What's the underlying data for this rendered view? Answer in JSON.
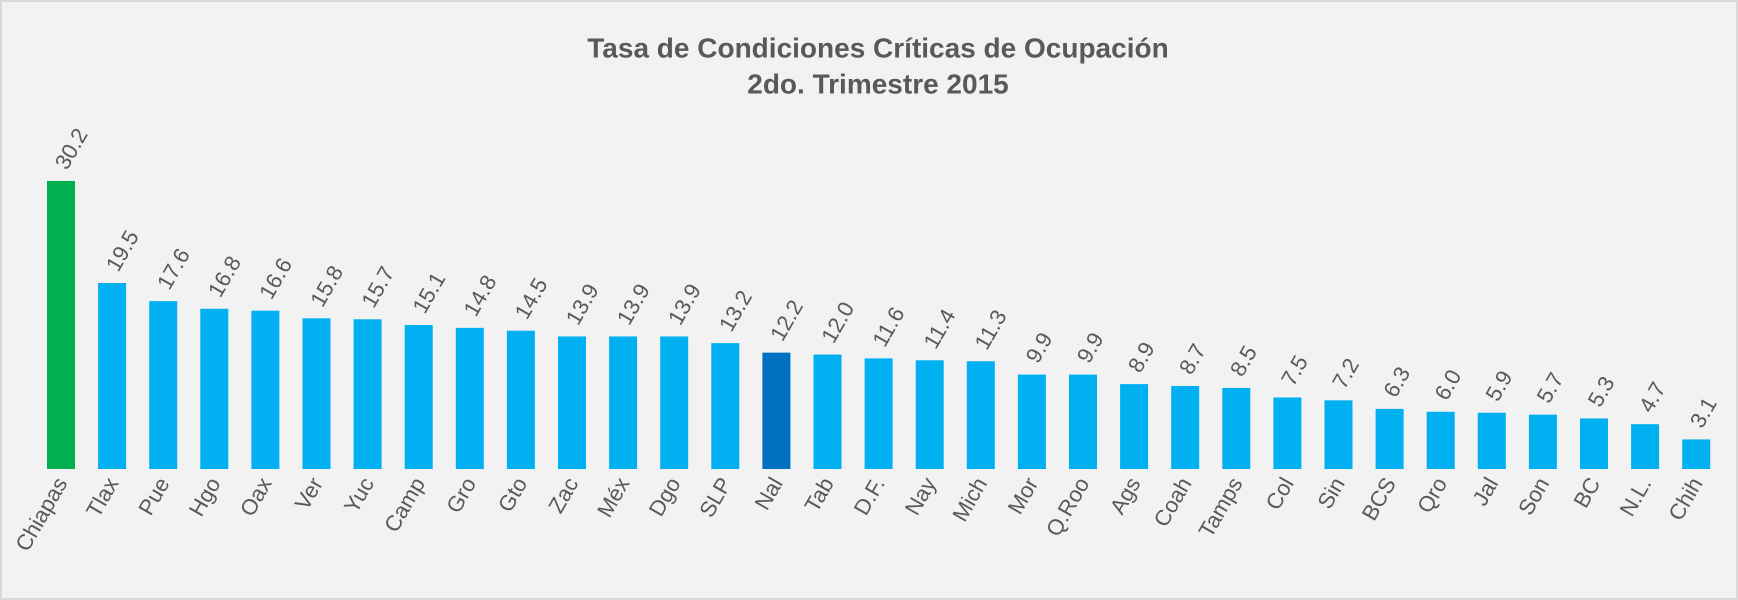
{
  "chart_data": {
    "type": "bar",
    "title": "Tasa de Condiciones Críticas de Ocupación",
    "subtitle": "2do. Trimestre 2015",
    "categories": [
      "Chiapas",
      "Tlax",
      "Pue",
      "Hgo",
      "Oax",
      "Ver",
      "Yuc",
      "Camp",
      "Gro",
      "Gto",
      "Zac",
      "Méx",
      "Dgo",
      "SLP",
      "Nal",
      "Tab",
      "D.F.",
      "Nay",
      "Mich",
      "Mor",
      "Q.Roo",
      "Ags",
      "Coah",
      "Tamps",
      "Col",
      "Sin",
      "BCS",
      "Qro",
      "Jal",
      "Son",
      "BC",
      "N.L.",
      "Chih"
    ],
    "values": [
      30.2,
      19.5,
      17.6,
      16.8,
      16.6,
      15.8,
      15.7,
      15.1,
      14.8,
      14.5,
      13.9,
      13.9,
      13.9,
      13.2,
      12.2,
      12.0,
      11.6,
      11.4,
      11.3,
      9.9,
      9.9,
      8.9,
      8.7,
      8.5,
      7.5,
      7.2,
      6.3,
      6.0,
      5.9,
      5.7,
      5.3,
      4.7,
      3.1
    ],
    "value_labels": [
      "30.2",
      "19.5",
      "17.6",
      "16.8",
      "16.6",
      "15.8",
      "15.7",
      "15.1",
      "14.8",
      "14.5",
      "13.9",
      "13.9",
      "13.9",
      "13.2",
      "12.2",
      "12.0",
      "11.6",
      "11.4",
      "11.3",
      "9.9",
      "9.9",
      "8.9",
      "8.7",
      "8.5",
      "7.5",
      "7.2",
      "6.3",
      "6.0",
      "5.9",
      "5.7",
      "5.3",
      "4.7",
      "3.1"
    ],
    "colors": [
      "#00b050",
      "#00b0f0",
      "#00b0f0",
      "#00b0f0",
      "#00b0f0",
      "#00b0f0",
      "#00b0f0",
      "#00b0f0",
      "#00b0f0",
      "#00b0f0",
      "#00b0f0",
      "#00b0f0",
      "#00b0f0",
      "#00b0f0",
      "#0070c0",
      "#00b0f0",
      "#00b0f0",
      "#00b0f0",
      "#00b0f0",
      "#00b0f0",
      "#00b0f0",
      "#00b0f0",
      "#00b0f0",
      "#00b0f0",
      "#00b0f0",
      "#00b0f0",
      "#00b0f0",
      "#00b0f0",
      "#00b0f0",
      "#00b0f0",
      "#00b0f0",
      "#00b0f0",
      "#00b0f0"
    ]
  }
}
